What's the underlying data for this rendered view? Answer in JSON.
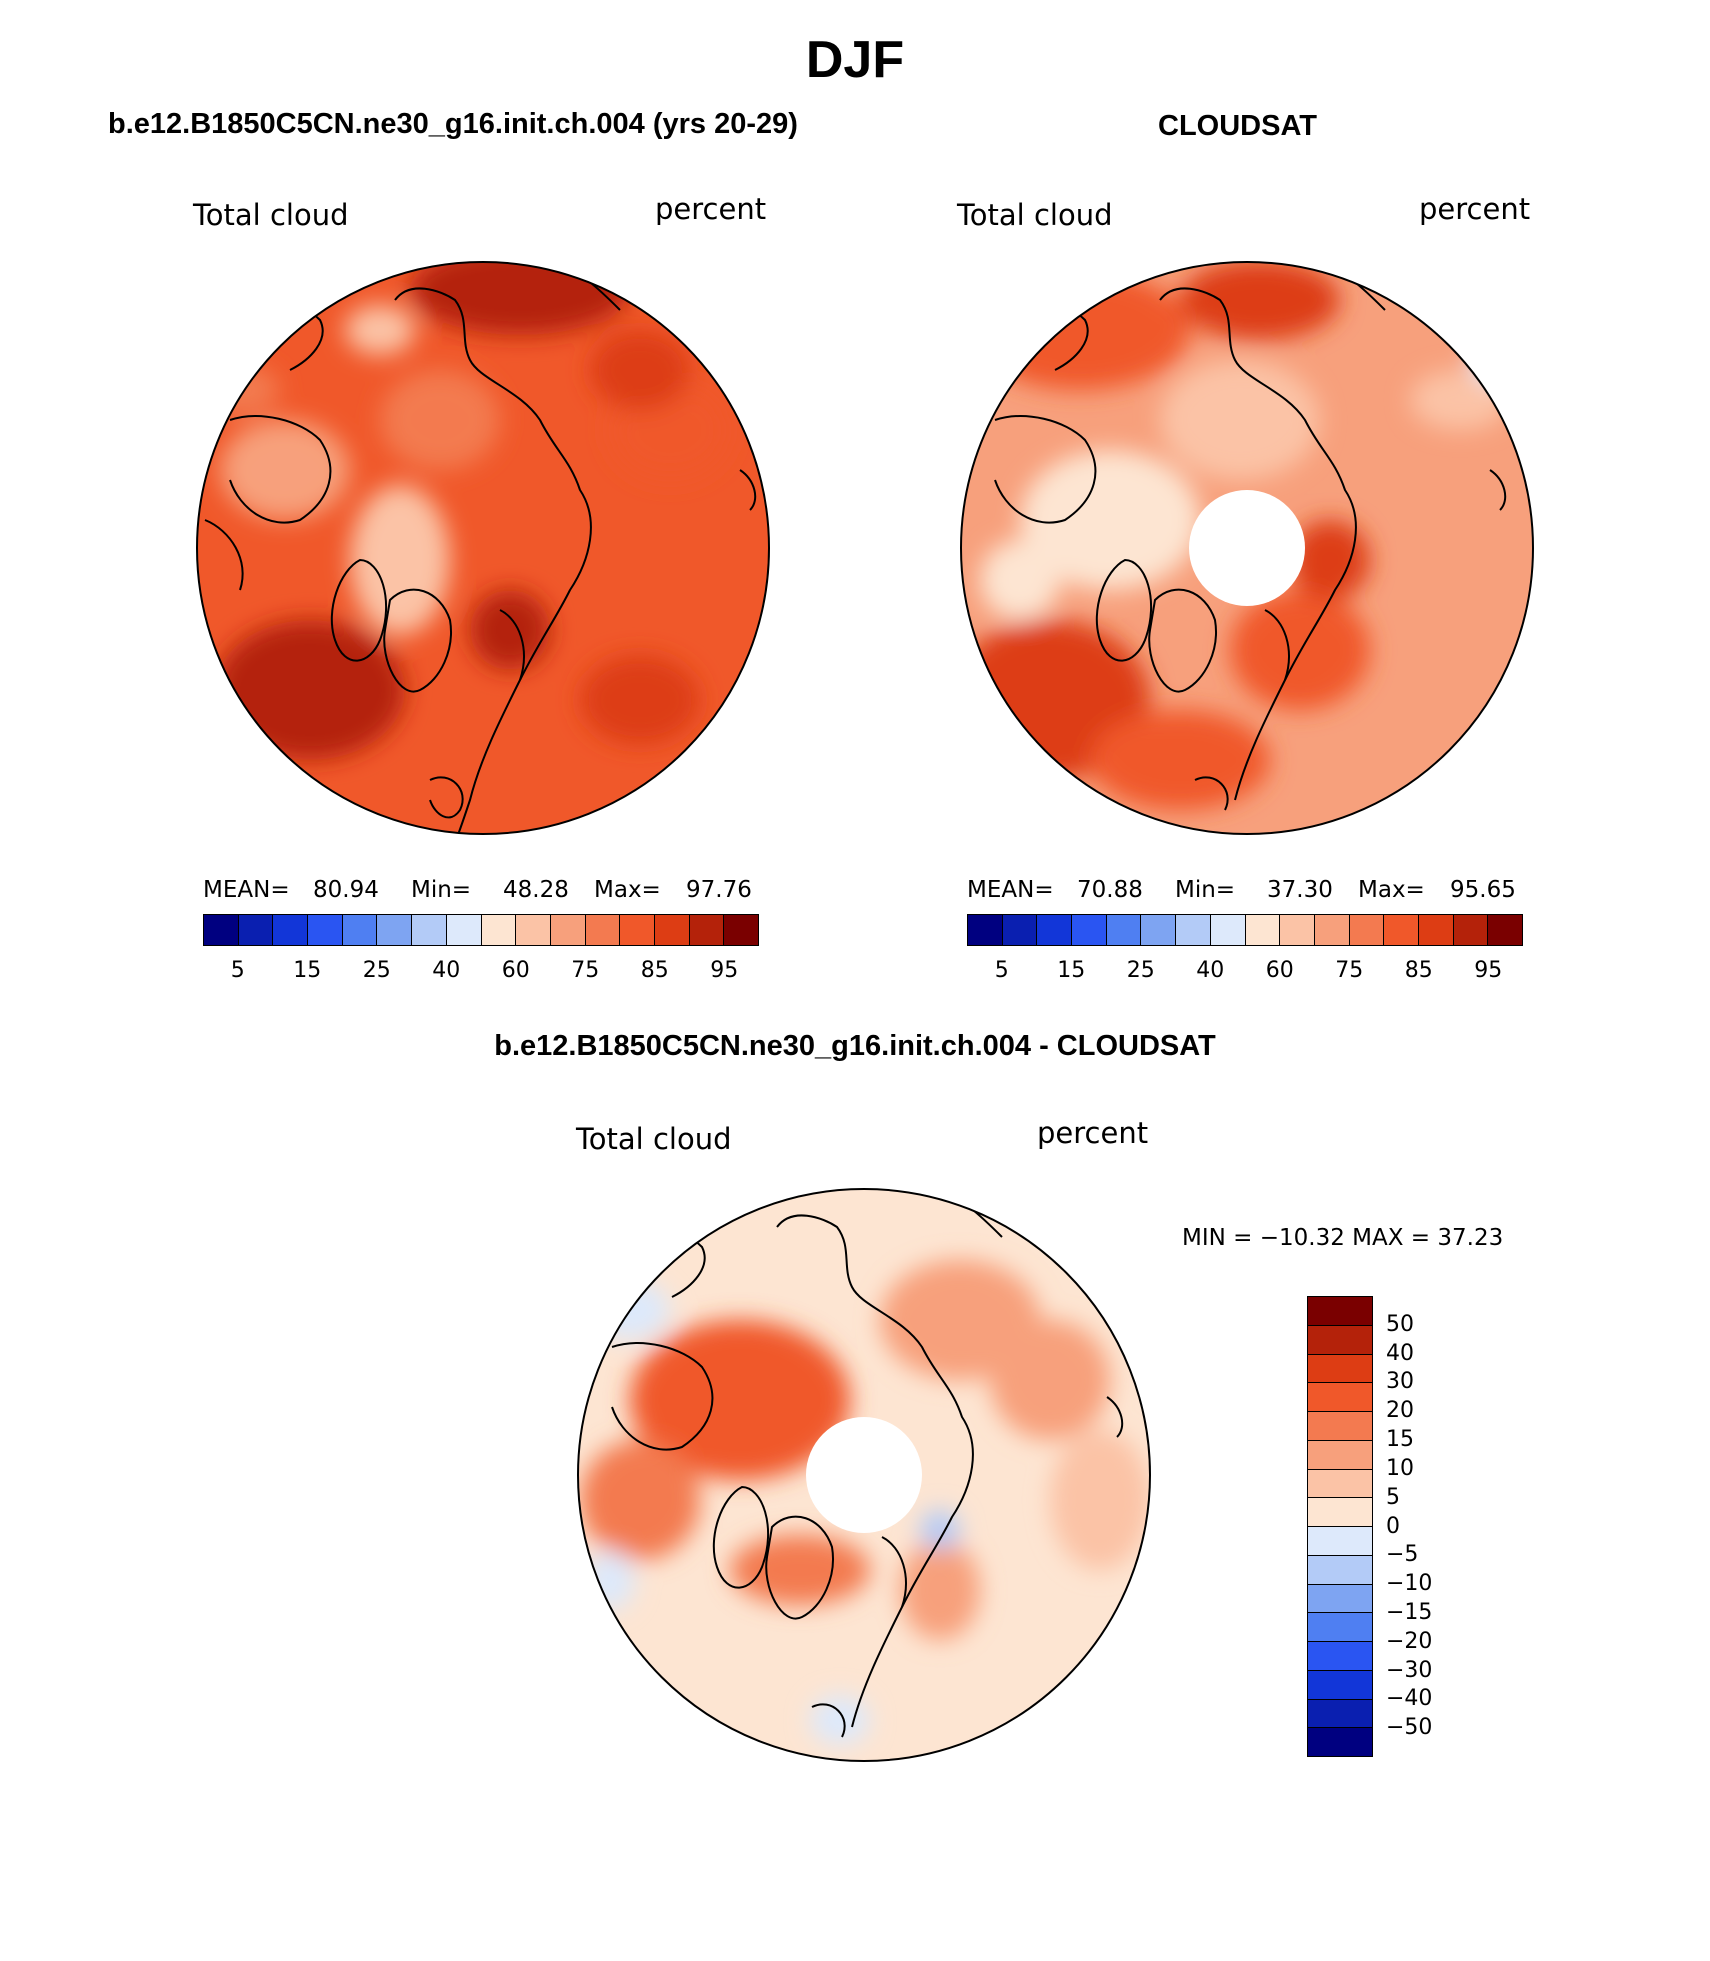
{
  "figure": {
    "title": "DJF"
  },
  "panels": [
    {
      "title": "b.e12.B1850C5CN.ne30_g16.init.ch.004 (yrs 20-29)",
      "left_label": "Total cloud",
      "right_label": "percent",
      "stats": {
        "mean_label": "MEAN=",
        "mean": "80.94",
        "min_label": "Min=",
        "min": "48.28",
        "max_label": "Max=",
        "max": "97.76"
      }
    },
    {
      "title": "CLOUDSAT",
      "left_label": "Total cloud",
      "right_label": "percent",
      "stats": {
        "mean_label": "MEAN=",
        "mean": "70.88",
        "min_label": "Min=",
        "min": "37.30",
        "max_label": "Max=",
        "max": "95.65"
      }
    },
    {
      "title": "b.e12.B1850C5CN.ne30_g16.init.ch.004 - CLOUDSAT",
      "left_label": "Total cloud",
      "right_label": "percent",
      "stats_text": "MIN = −10.32  MAX =   37.23"
    }
  ],
  "colorbar_abs": {
    "ticks": [
      "5",
      "15",
      "25",
      "40",
      "60",
      "75",
      "85",
      "95"
    ],
    "colors": [
      "#000080",
      "#0a1fb0",
      "#1236d8",
      "#2a55f2",
      "#4f7ff2",
      "#7ea4f2",
      "#b3cbf7",
      "#dde9fb",
      "#fde5d2",
      "#fbc3a6",
      "#f7a07c",
      "#f37a50",
      "#f0582a",
      "#dd3d14",
      "#b4220a",
      "#7a0000"
    ]
  },
  "colorbar_diff": {
    "ticks": [
      "50",
      "40",
      "30",
      "20",
      "15",
      "10",
      "5",
      "0",
      "−5",
      "−10",
      "−15",
      "−20",
      "−30",
      "−40",
      "−50"
    ],
    "colors": [
      "#7a0000",
      "#b4220a",
      "#dd3d14",
      "#f0582a",
      "#f37a50",
      "#f7a07c",
      "#fbc3a6",
      "#fde5d2",
      "#dde9fb",
      "#b3cbf7",
      "#7ea4f2",
      "#4f7ff2",
      "#2a55f2",
      "#1236d8",
      "#0a1fb0",
      "#000080"
    ]
  }
}
